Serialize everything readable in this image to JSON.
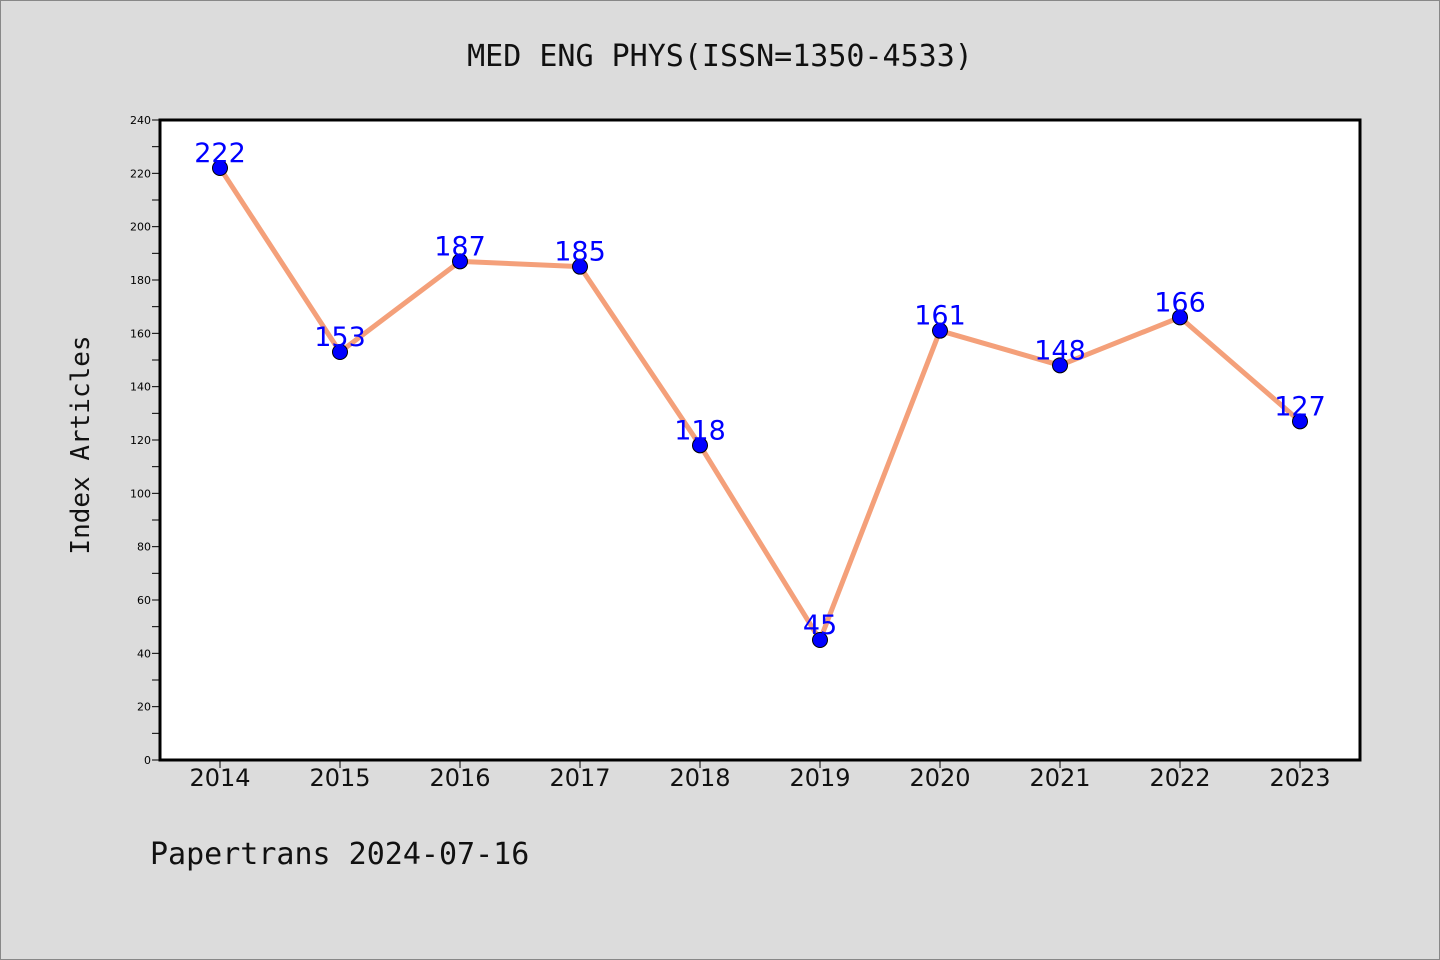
{
  "chart_data": {
    "type": "line",
    "title": "MED ENG PHYS(ISSN=1350-4533)",
    "xlabel": "",
    "ylabel": "Index Articles",
    "categories": [
      "2014",
      "2015",
      "2016",
      "2017",
      "2018",
      "2019",
      "2020",
      "2021",
      "2022",
      "2023"
    ],
    "values": [
      222,
      153,
      187,
      185,
      118,
      45,
      161,
      148,
      166,
      127
    ],
    "ylim": [
      0,
      240
    ],
    "yticks": [
      "0",
      "20",
      "40",
      "60",
      "80",
      "100",
      "120",
      "140",
      "160",
      "180",
      "200",
      "220",
      "240"
    ],
    "grid": false,
    "data_labels": true,
    "colors": {
      "line": "#f4a07a",
      "marker": "#0000ff",
      "label": "#0000ff",
      "background": "#dcdcdc",
      "plot_bg": "#ffffff"
    }
  },
  "footer": "Papertrans 2024-07-16"
}
